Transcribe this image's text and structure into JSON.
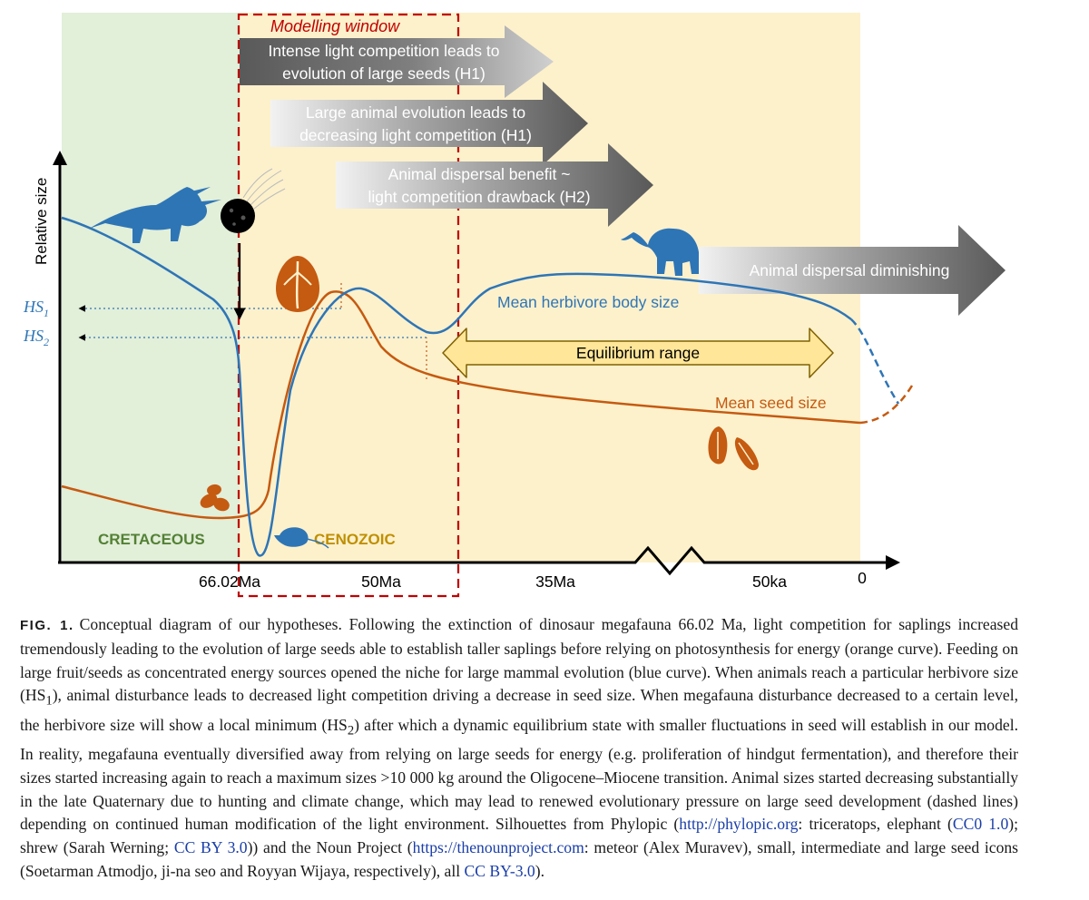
{
  "diagram": {
    "y_axis_label": "Relative size",
    "hs1_label": "HS",
    "hs1_sub": "1",
    "hs2_label": "HS",
    "hs2_sub": "2",
    "modelling_window_label": "Modelling window",
    "arrow_h1a_line1": "Intense light competition leads to",
    "arrow_h1a_line2": "evolution of large seeds (H1)",
    "arrow_h1b_line1": "Large animal evolution leads to",
    "arrow_h1b_line2": "decreasing light competition (H1)",
    "arrow_h2_line1": "Animal dispersal benefit ~",
    "arrow_h2_line2": "light competition drawback (H2)",
    "arrow_diminish": "Animal dispersal diminishing",
    "herbivore_curve_label": "Mean herbivore body size",
    "seed_curve_label": "Mean seed size",
    "equilibrium_label": "Equilibrium range",
    "cretaceous_label": "CRETACEOUS",
    "cenozoic_label": "CENOZOIC",
    "x_ticks": [
      "66.02Ma",
      "50Ma",
      "35Ma",
      "50ka",
      "0"
    ],
    "colors": {
      "cretaceous_bg": "#e2efd9",
      "cenozoic_bg": "#fdf1cc",
      "herbivore_curve": "#2e75b6",
      "seed_curve": "#c55a11",
      "modelling_window": "#c00000",
      "cretaceous_text": "#538135",
      "cenozoic_text": "#bf8f00",
      "equilibrium_fill": "#ffe699"
    },
    "icons": [
      "triceratops-icon",
      "meteor-icon",
      "elephant-icon",
      "shrew-icon",
      "large-seed-icon",
      "small-seed-icon",
      "intermediate-seed-icon"
    ]
  },
  "caption": {
    "label": "FIG. 1.",
    "p1": "Conceptual diagram of our hypotheses. Following the extinction of dinosaur megafauna 66.02 Ma, light competition for saplings increased tremendously leading to the evolution of large seeds able to establish taller saplings before relying on photosynthesis for energy (orange curve). Feeding on large fruit/seeds as concentrated energy sources opened the niche for large mammal evolution (blue curve). When animals reach a particular herbivore size (HS",
    "sub1": "1",
    "p2": "), animal disturbance leads to decreased light competition driving a decrease in seed size. When megafauna disturbance decreased to a certain level, the herbivore size will show a local minimum (HS",
    "sub2": "2",
    "p3": ") after which a dynamic equilibrium state with smaller fluctuations in seed will establish in our model. In reality, megafauna eventually diversified away from relying on large seeds for energy (e.g. proliferation of hindgut fermentation), and therefore their sizes started increasing again to reach a maximum sizes >10 000 kg around the Oligocene–Miocene transition. Animal sizes started decreasing substantially in the late Quaternary due to hunting and climate change, which may lead to renewed evolutionary pressure on large seed development (dashed lines) depending on continued human modification of the light environment. Silhouettes from Phylopic (",
    "link1": "http://phylopic.org",
    "p4": ": triceratops, elephant (",
    "link2": "CC0 1.0",
    "p5": "); shrew (Sarah Werning; ",
    "link3": "CC BY 3.0",
    "p6": ")) and the Noun Project (",
    "link4": "https://thenounproject.com",
    "p7": ": meteor (Alex Muravev), small, intermediate and large seed icons (Soetarman Atmodjo, ji-na seo and Royyan Wijaya, respectively), all ",
    "link5": "CC BY-3.0",
    "p8": ")."
  }
}
